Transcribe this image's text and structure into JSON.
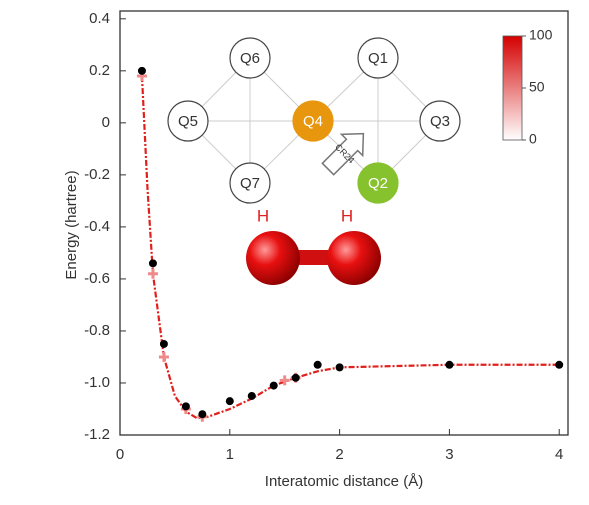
{
  "chart_data": {
    "type": "scatter",
    "xlabel": "Interatomic distance (Å)",
    "ylabel": "Energy (hartree)",
    "xlim": [
      0,
      4.08
    ],
    "ylim": [
      -1.2,
      0.43
    ],
    "xticks": [
      0,
      1,
      2,
      3,
      4
    ],
    "yticks": [
      0.4,
      0.2,
      0,
      -0.2,
      -0.4,
      -0.6,
      -0.8,
      {
        "value": -1,
        "label": "-1.0"
      },
      -1.2
    ],
    "series": [
      {
        "style": "line",
        "color": "#e0201c",
        "x": [
          0.2,
          0.25,
          0.3,
          0.4,
          0.5,
          0.6,
          0.7,
          0.8,
          1.0,
          1.2,
          1.4,
          1.6,
          1.8,
          2.0,
          2.5,
          3.0,
          4.0
        ],
        "values": [
          0.18,
          -0.25,
          -0.58,
          -0.9,
          -1.05,
          -1.11,
          -1.135,
          -1.13,
          -1.1,
          -1.06,
          -1.01,
          -0.98,
          -0.955,
          -0.94,
          -0.935,
          -0.93,
          -0.93
        ]
      },
      {
        "style": "cross",
        "color": "#f08a8a",
        "x": [
          0.2,
          0.3,
          0.4,
          0.6,
          0.75,
          1.5,
          1.6
        ],
        "values": [
          0.18,
          -0.58,
          -0.9,
          -1.1,
          -1.13,
          -0.99,
          -0.98
        ]
      },
      {
        "style": "dot",
        "color": "#000000",
        "x": [
          0.2,
          0.3,
          0.4,
          0.6,
          0.75,
          1.0,
          1.2,
          1.4,
          1.6,
          1.8,
          2.0,
          3.0,
          4.0
        ],
        "values": [
          0.2,
          -0.54,
          -0.85,
          -1.09,
          -1.12,
          -1.07,
          -1.05,
          -1.01,
          -0.98,
          -0.93,
          -0.94,
          -0.93,
          -0.93
        ]
      }
    ],
    "colorbar": {
      "lim": [
        0,
        100
      ],
      "ticks": [
        0,
        50,
        100
      ]
    },
    "qubits": [
      "Q1",
      "Q2",
      "Q3",
      "Q4",
      "Q5",
      "Q6",
      "Q7"
    ],
    "arrow_label": "CR24",
    "atoms": [
      "H",
      "H"
    ]
  }
}
